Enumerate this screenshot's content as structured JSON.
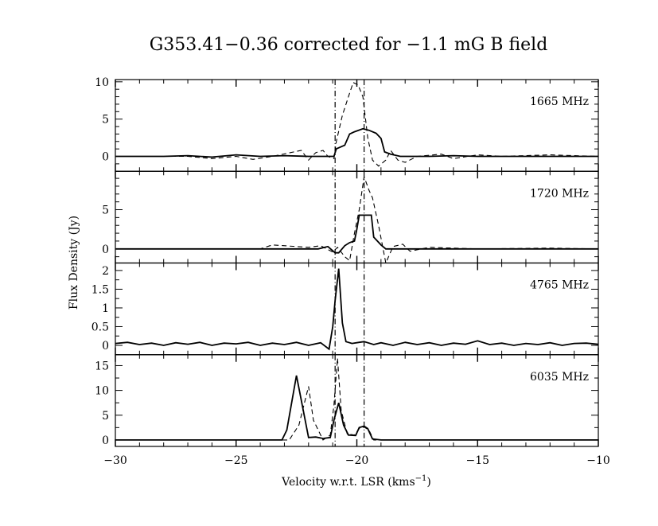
{
  "chart_data": {
    "type": "line",
    "title": "G353.41−0.36 corrected for −1.1 mG B field",
    "xlabel": "Velocity w.r.t. LSR (kms",
    "xlabel_sup": "−1",
    "xlabel_end": ")",
    "ylabel": "Flux Density (Jy)",
    "xlim": [
      -30,
      -10
    ],
    "x_ticks": [
      -30,
      -25,
      -20,
      -15,
      -10
    ],
    "x_tick_labels": [
      "−30",
      "−25",
      "−20",
      "−15",
      "−10"
    ],
    "reference_lines_x": [
      -20.9,
      -19.7
    ],
    "panels": [
      {
        "label": "1665 MHz",
        "ylim": [
          -2,
          10.3
        ],
        "y_ticks": [
          0,
          5,
          10
        ],
        "y_tick_labels": [
          "0",
          "5",
          "10"
        ],
        "minor": 1,
        "series": [
          {
            "name": "solid",
            "style": "solid",
            "x": [
              -30,
              -28,
              -27,
              -26,
              -25,
              -24,
              -23,
              -22,
              -21.2,
              -20.95,
              -20.85,
              -20.5,
              -20.3,
              -20.1,
              -19.75,
              -19.5,
              -19.2,
              -19.0,
              -18.85,
              -18.6,
              -18.2,
              -17,
              -16,
              -15,
              -14,
              -12,
              -10
            ],
            "y": [
              0,
              0,
              0.1,
              -0.1,
              0.2,
              0,
              0.1,
              0,
              0,
              0,
              1,
              1.5,
              3,
              3.3,
              3.7,
              3.5,
              3.1,
              2.4,
              0.6,
              0.3,
              0,
              0,
              0.1,
              0,
              0,
              0,
              0
            ]
          },
          {
            "name": "dashed",
            "style": "dashed",
            "x": [
              -30,
              -27,
              -26,
              -25,
              -24.3,
              -23.5,
              -22.3,
              -22,
              -21.7,
              -21.4,
              -21.2,
              -20.95,
              -20.85,
              -20.6,
              -20.35,
              -20.15,
              -19.95,
              -19.75,
              -19.55,
              -19.35,
              -19.1,
              -18.8,
              -18.6,
              -18.3,
              -18,
              -17.5,
              -16.5,
              -16,
              -15,
              -14,
              -12,
              -10
            ],
            "y": [
              0,
              0,
              -0.3,
              0,
              -0.4,
              0,
              0.8,
              -0.5,
              0.5,
              0.8,
              0,
              -0.3,
              2,
              5.5,
              8,
              9.9,
              9.6,
              8,
              2.5,
              -0.5,
              -1.3,
              -0.5,
              0.8,
              -0.5,
              -0.8,
              0,
              0.3,
              -0.3,
              0.2,
              0,
              0.2,
              0
            ]
          }
        ]
      },
      {
        "label": "1720 MHz",
        "ylim": [
          -1.8,
          9.9
        ],
        "y_ticks": [
          0,
          5
        ],
        "y_tick_labels": [
          "0",
          "5"
        ],
        "minor": 1,
        "series": [
          {
            "name": "solid",
            "style": "solid",
            "x": [
              -30,
              -26,
              -23,
              -21.6,
              -21.2,
              -20.9,
              -20.75,
              -20.5,
              -20.3,
              -20.1,
              -20.0,
              -19.9,
              -19.4,
              -19.3,
              -19.0,
              -18.8,
              -18.3,
              -17,
              -14,
              -10
            ],
            "y": [
              0,
              0,
              0,
              0,
              0.3,
              -0.5,
              -0.5,
              0.4,
              0.8,
              1,
              2.5,
              4.3,
              4.3,
              1.5,
              0.5,
              0,
              0,
              0,
              0,
              0
            ]
          },
          {
            "name": "dashed",
            "style": "dashed",
            "x": [
              -30,
              -27,
              -24,
              -23.5,
              -22.5,
              -22,
              -21.5,
              -21.0,
              -20.8,
              -20.5,
              -20.3,
              -20.1,
              -19.9,
              -19.7,
              -19.5,
              -19.35,
              -19.1,
              -18.8,
              -18.5,
              -18.1,
              -17.8,
              -17,
              -15,
              -12,
              -10
            ],
            "y": [
              0,
              0,
              0,
              0.5,
              0.3,
              0.2,
              0.4,
              -0.4,
              0.2,
              -1,
              -1.5,
              2,
              5,
              9.2,
              7.5,
              6.5,
              3,
              -1.8,
              0.3,
              0.6,
              -0.3,
              0.2,
              0,
              0.1,
              0
            ]
          }
        ]
      },
      {
        "label": "4765 MHz",
        "ylim": [
          -0.25,
          2.2
        ],
        "y_ticks": [
          0,
          0.5,
          1,
          1.5,
          2
        ],
        "y_tick_labels": [
          "0",
          "0.5",
          "1",
          "1.5",
          "2"
        ],
        "minor": 0.25,
        "series": [
          {
            "name": "solid",
            "style": "solid",
            "x": [
              -30,
              -29.5,
              -29,
              -28.5,
              -28,
              -27.5,
              -27,
              -26.5,
              -26,
              -25.5,
              -25,
              -24.5,
              -24,
              -23.5,
              -23,
              -22.5,
              -22,
              -21.5,
              -21.15,
              -21.0,
              -20.9,
              -20.75,
              -20.6,
              -20.45,
              -20.2,
              -19.9,
              -19.7,
              -19.3,
              -19,
              -18.5,
              -18,
              -17.5,
              -17,
              -16.5,
              -16,
              -15.5,
              -15,
              -14.5,
              -14,
              -13.5,
              -13,
              -12.5,
              -12,
              -11.5,
              -11,
              -10.5,
              -10
            ],
            "y": [
              0.05,
              0.08,
              0.02,
              0.06,
              0.0,
              0.07,
              0.03,
              0.08,
              0.0,
              0.06,
              0.04,
              0.08,
              0.0,
              0.06,
              0.02,
              0.08,
              0.0,
              0.07,
              -0.1,
              0.5,
              1.2,
              2.05,
              0.6,
              0.1,
              0.05,
              0.08,
              0.1,
              0.02,
              0.07,
              0.0,
              0.08,
              0.02,
              0.07,
              0.0,
              0.06,
              0.03,
              0.12,
              0.02,
              0.06,
              0.0,
              0.05,
              0.02,
              0.07,
              0.0,
              0.05,
              0.06,
              0.03
            ]
          }
        ]
      },
      {
        "label": "6035 MHz",
        "ylim": [
          -1.3,
          17.2
        ],
        "y_ticks": [
          0,
          5,
          10,
          15
        ],
        "y_tick_labels": [
          "0",
          "5",
          "10",
          "15"
        ],
        "minor": 2.5,
        "series": [
          {
            "name": "solid",
            "style": "solid",
            "x": [
              -30,
              -23.1,
              -22.9,
              -22.5,
              -22.3,
              -22.0,
              -21.7,
              -21.4,
              -21.1,
              -20.95,
              -20.75,
              -20.55,
              -20.35,
              -20.05,
              -19.9,
              -19.7,
              -19.55,
              -19.35,
              -19.0,
              -10
            ],
            "y": [
              0,
              0,
              2,
              13,
              8,
              0.5,
              0.6,
              0.3,
              0.5,
              4,
              7.5,
              3,
              1,
              0.9,
              2.5,
              2.8,
              2.3,
              0.2,
              0,
              0
            ]
          },
          {
            "name": "dashed",
            "style": "dashed",
            "x": [
              -30,
              -22.8,
              -22.4,
              -22.0,
              -21.8,
              -21.4,
              -21.1,
              -20.95,
              -20.8,
              -20.65,
              -20.4,
              -20.1,
              -19.9,
              -19.7,
              -19.5,
              -19.3,
              -10
            ],
            "y": [
              0,
              0,
              3,
              10.8,
              4,
              0,
              1,
              7,
              16.5,
              6,
              1.2,
              1,
              2.3,
              2.6,
              2,
              0,
              0
            ]
          }
        ]
      }
    ]
  }
}
